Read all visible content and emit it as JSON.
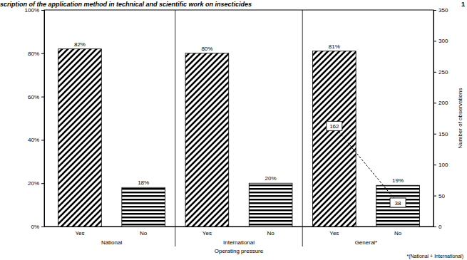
{
  "chart_data": {
    "type": "bar",
    "title": "scription of the application method in technical and scientific work on insecticides",
    "page_number": "1",
    "categories": [
      "Yes",
      "No",
      "Yes",
      "No",
      "Yes",
      "No"
    ],
    "groups": [
      "National",
      "International",
      "General*"
    ],
    "x_label": "Operating pressure",
    "y2_label": "Number of observations",
    "footnote": "*(National + International)",
    "ylim": [
      0,
      100
    ],
    "yticks": [
      {
        "value": 0,
        "label": "0%"
      },
      {
        "value": 20,
        "label": "20%"
      },
      {
        "value": 40,
        "label": "40%"
      },
      {
        "value": 60,
        "label": "60%"
      },
      {
        "value": 80,
        "label": "80%"
      },
      {
        "value": 100,
        "label": "100%"
      }
    ],
    "y2lim": [
      0,
      350
    ],
    "y2ticks": [
      0,
      50,
      100,
      150,
      200,
      250,
      300,
      350
    ],
    "series": [
      {
        "type": "bar",
        "color": "#000000",
        "data_labels": true,
        "values": [
          82,
          18,
          80,
          20,
          81,
          19
        ],
        "value_labels": [
          "82%",
          "18%",
          "80%",
          "20%",
          "81%",
          "19%"
        ]
      },
      {
        "type": "line",
        "axis": "y2",
        "color": "#000000",
        "line_style": "dashed",
        "data_labels": true,
        "values": [
          null,
          null,
          null,
          null,
          162,
          38
        ]
      }
    ]
  }
}
